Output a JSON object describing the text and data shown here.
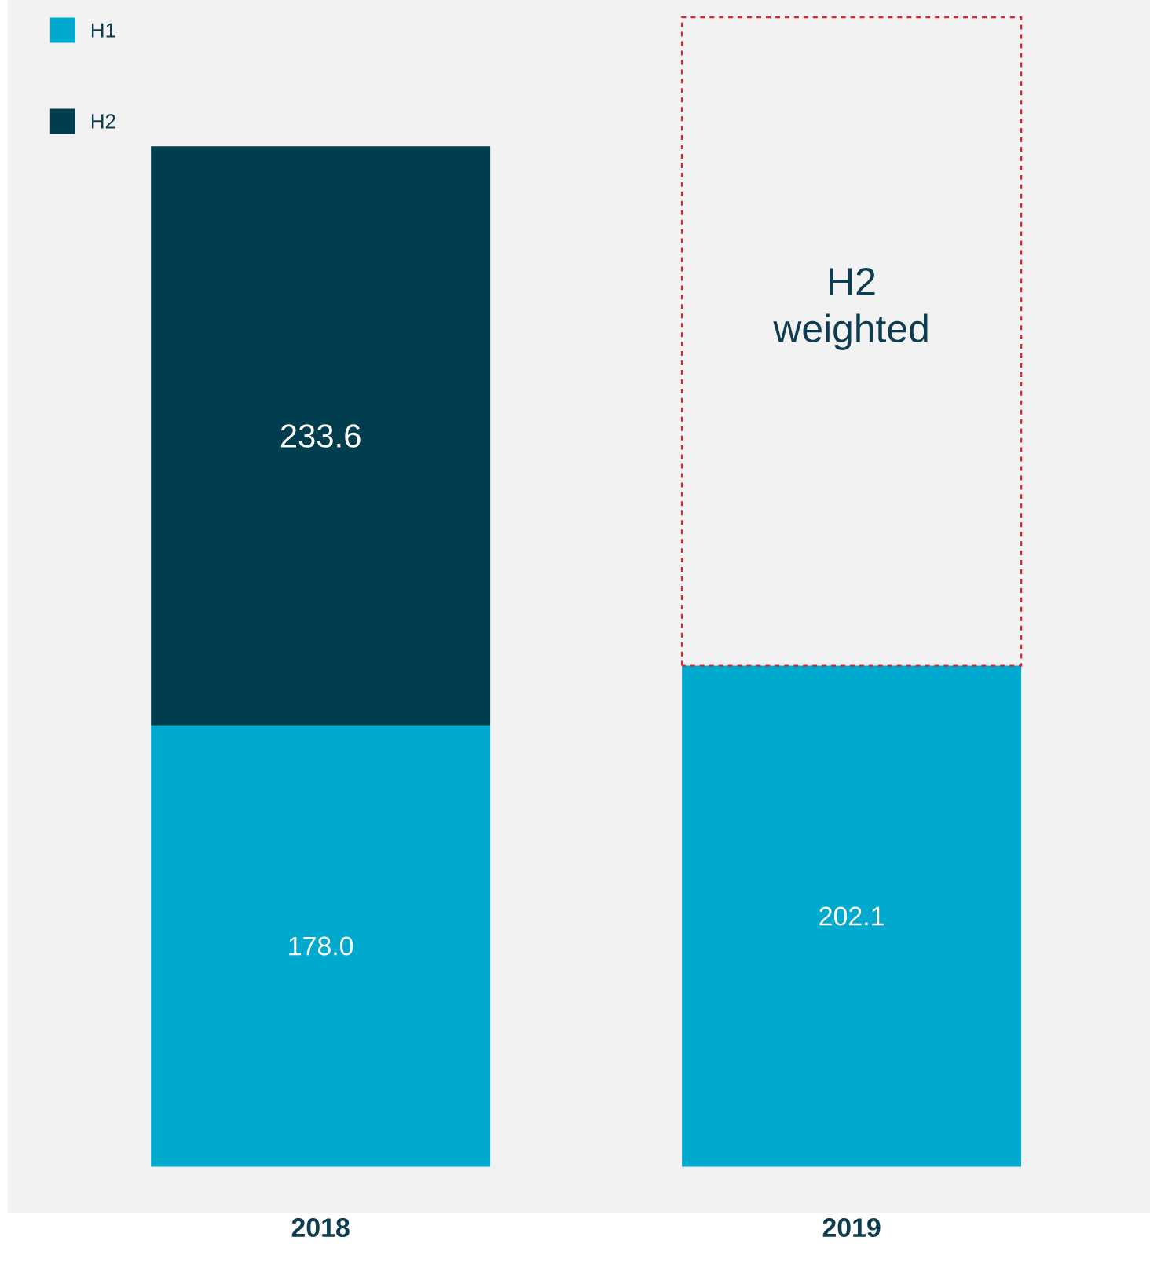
{
  "chart_data": {
    "type": "bar",
    "stacked": true,
    "categories": [
      "2018",
      "2019"
    ],
    "legend": "top left",
    "series": [
      {
        "name": "H1",
        "color": "#00a9ce",
        "values": [
          178.0,
          202.1
        ],
        "value_labels": [
          "178.0",
          "202.1"
        ]
      },
      {
        "name": "H2",
        "color": "#003d4f",
        "values": [
          233.6,
          null
        ],
        "value_labels": [
          "233.6",
          null
        ]
      },
      {
        "name": "H2 weighted",
        "color": "#d9262e",
        "values": [
          null,
          261.6
        ],
        "line_style": "dashed"
      }
    ]
  }
}
